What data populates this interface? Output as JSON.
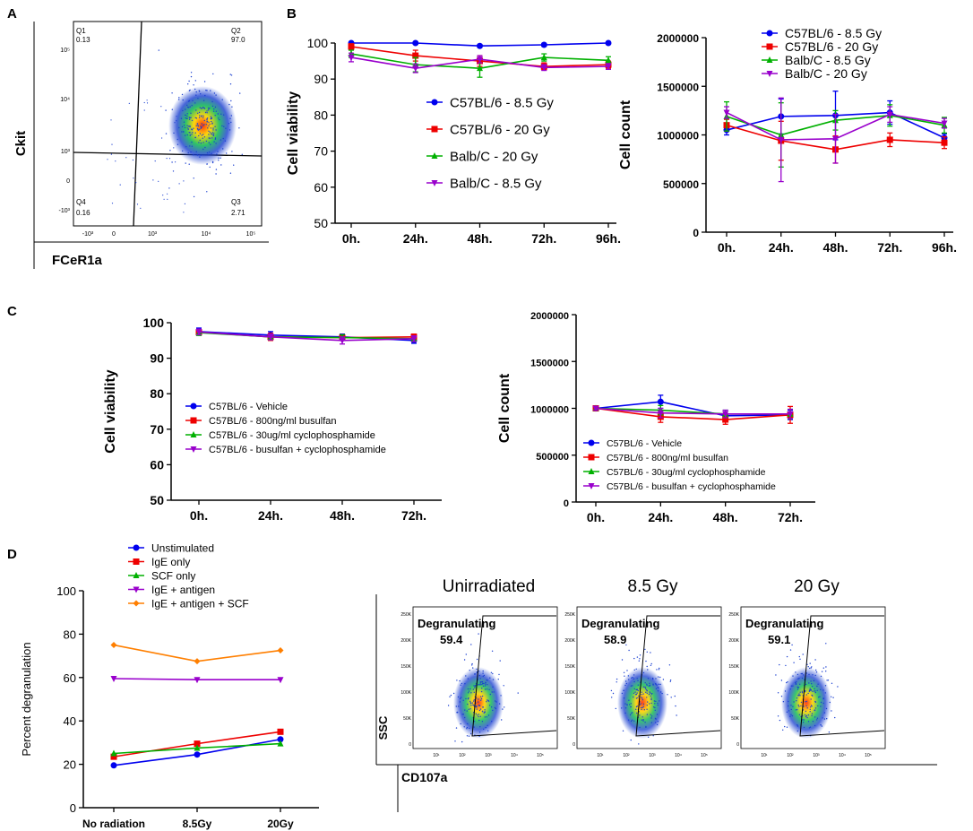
{
  "panels": {
    "A": "A",
    "B": "B",
    "C": "C",
    "D": "D"
  },
  "colors": {
    "blue": "#0000ee",
    "red": "#ee0000",
    "green": "#00b000",
    "purple": "#9900cc",
    "orange": "#ff7f00"
  },
  "chart_data": [
    {
      "id": "A-flow",
      "type": "scatter",
      "title": "",
      "xlabel": "FCeR1a",
      "ylabel": "Ckit",
      "quadrants": [
        {
          "name": "Q1",
          "value": "0.13"
        },
        {
          "name": "Q2",
          "value": "97.0"
        },
        {
          "name": "Q3",
          "value": "2.71"
        },
        {
          "name": "Q4",
          "value": "0.16"
        }
      ],
      "xticks": [
        "-10³",
        "0",
        "10³",
        "10⁴",
        "10⁵"
      ],
      "yticks": [
        "10⁵",
        "10⁴",
        "10³",
        "0",
        "-10³"
      ]
    },
    {
      "id": "B-viability",
      "type": "line",
      "xlabel": "",
      "ylabel": "Cell viability",
      "ylim": [
        50,
        100
      ],
      "yticks": [
        "50",
        "60",
        "70",
        "80",
        "90",
        "100"
      ],
      "categories": [
        "0h.",
        "24h.",
        "48h.",
        "72h.",
        "96h."
      ],
      "series": [
        {
          "name": "C57BL/6 - 8.5 Gy",
          "color": "blue",
          "marker": "circle",
          "values": [
            100,
            100,
            99.2,
            99.5,
            100
          ],
          "errors": [
            0.3,
            0.3,
            0.4,
            0.4,
            0.3
          ]
        },
        {
          "name": "C57BL/6 - 20 Gy",
          "color": "red",
          "marker": "square",
          "values": [
            99,
            96.5,
            95,
            93.5,
            94
          ],
          "errors": [
            0.8,
            1.5,
            1.5,
            1,
            1
          ]
        },
        {
          "name": "Balb/C - 20 Gy",
          "color": "green",
          "marker": "triangle",
          "values": [
            97,
            94,
            93,
            96,
            95.2
          ],
          "errors": [
            1,
            2,
            2.5,
            1,
            1
          ]
        },
        {
          "name": "Balb/C - 8.5 Gy",
          "color": "purple",
          "marker": "tridown",
          "values": [
            96,
            93,
            95.5,
            93.2,
            93.5
          ],
          "errors": [
            1.2,
            1.2,
            1,
            0.8,
            0.8
          ]
        }
      ]
    },
    {
      "id": "B-count",
      "type": "line",
      "xlabel": "",
      "ylabel": "Cell count",
      "ylim": [
        0,
        2000000
      ],
      "yticks": [
        "0",
        "500000",
        "1000000",
        "1500000",
        "2000000"
      ],
      "categories": [
        "0h.",
        "24h.",
        "48h.",
        "72h.",
        "96h."
      ],
      "series": [
        {
          "name": "C57BL/6 - 8.5 Gy",
          "color": "blue",
          "marker": "circle",
          "values": [
            1050000,
            1190000,
            1200000,
            1230000,
            970000
          ],
          "errors": [
            50000,
            180000,
            250000,
            120000,
            40000
          ]
        },
        {
          "name": "C57BL/6 - 20 Gy",
          "color": "red",
          "marker": "square",
          "values": [
            1100000,
            940000,
            850000,
            950000,
            920000
          ],
          "errors": [
            60000,
            200000,
            140000,
            70000,
            60000
          ]
        },
        {
          "name": "Balb/C - 8.5 Gy",
          "color": "green",
          "marker": "triangle",
          "values": [
            1190000,
            1000000,
            1150000,
            1200000,
            1100000
          ],
          "errors": [
            150000,
            330000,
            100000,
            110000,
            80000
          ]
        },
        {
          "name": "Balb/C - 20 Gy",
          "color": "purple",
          "marker": "tridown",
          "values": [
            1230000,
            950000,
            960000,
            1210000,
            1120000
          ],
          "errors": [
            60000,
            430000,
            250000,
            80000,
            50000
          ]
        }
      ]
    },
    {
      "id": "C-viability",
      "type": "line",
      "xlabel": "",
      "ylabel": "Cell viability",
      "ylim": [
        50,
        100
      ],
      "yticks": [
        "50",
        "60",
        "70",
        "80",
        "90",
        "100"
      ],
      "categories": [
        "0h.",
        "24h.",
        "48h.",
        "72h."
      ],
      "series": [
        {
          "name": "C57BL/6 - Vehicle",
          "color": "blue",
          "marker": "circle",
          "values": [
            97.5,
            96.5,
            96,
            95
          ],
          "errors": [
            1,
            1,
            0.8,
            0.8
          ]
        },
        {
          "name": "C57BL/6 - 800ng/ml busulfan",
          "color": "red",
          "marker": "square",
          "values": [
            97.3,
            96,
            95.8,
            96
          ],
          "errors": [
            0.8,
            1,
            0.8,
            0.8
          ]
        },
        {
          "name": "C57BL/6 - 30ug/ml cyclophosphamide",
          "color": "green",
          "marker": "triangle",
          "values": [
            97.2,
            96,
            95.8,
            95.5
          ],
          "errors": [
            0.8,
            0.8,
            0.8,
            0.8
          ]
        },
        {
          "name": "C57BL/6 - busulfan + cyclophosphamide",
          "color": "purple",
          "marker": "tridown",
          "values": [
            97.4,
            96,
            95,
            95.5
          ],
          "errors": [
            0.8,
            0.8,
            1,
            0.8
          ]
        }
      ]
    },
    {
      "id": "C-count",
      "type": "line",
      "xlabel": "",
      "ylabel": "Cell count",
      "ylim": [
        0,
        2000000
      ],
      "yticks": [
        "0",
        "500000",
        "1000000",
        "1500000",
        "2000000"
      ],
      "categories": [
        "0h.",
        "24h.",
        "48h.",
        "72h."
      ],
      "series": [
        {
          "name": "C57BL/6 - Vehicle",
          "color": "blue",
          "marker": "circle",
          "values": [
            1000000,
            1070000,
            920000,
            930000
          ],
          "errors": [
            20000,
            70000,
            60000,
            50000
          ]
        },
        {
          "name": "C57BL/6 - 800ng/ml busulfan",
          "color": "red",
          "marker": "square",
          "values": [
            1000000,
            910000,
            880000,
            930000
          ],
          "errors": [
            20000,
            60000,
            50000,
            90000
          ]
        },
        {
          "name": "C57BL/6 - 30ug/ml cyclophosphamide",
          "color": "green",
          "marker": "triangle",
          "values": [
            1000000,
            980000,
            940000,
            940000
          ],
          "errors": [
            20000,
            50000,
            40000,
            50000
          ]
        },
        {
          "name": "C57BL/6 - busulfan + cyclophosphamide",
          "color": "purple",
          "marker": "tridown",
          "values": [
            1000000,
            950000,
            940000,
            940000
          ],
          "errors": [
            20000,
            50000,
            40000,
            50000
          ]
        }
      ]
    },
    {
      "id": "D-degranulation",
      "type": "line",
      "xlabel": "",
      "ylabel": "Percent degranulation",
      "ylim": [
        0,
        100
      ],
      "yticks": [
        "0",
        "20",
        "40",
        "60",
        "80",
        "100"
      ],
      "categories": [
        "No radiation",
        "8.5Gy",
        "20Gy"
      ],
      "series": [
        {
          "name": "Unstimulated",
          "color": "blue",
          "marker": "circle",
          "values": [
            19.5,
            24.5,
            31.5
          ]
        },
        {
          "name": "IgE only",
          "color": "red",
          "marker": "square",
          "values": [
            23.5,
            29.5,
            35
          ]
        },
        {
          "name": "SCF only",
          "color": "green",
          "marker": "triangle",
          "values": [
            25,
            27.5,
            29.5
          ]
        },
        {
          "name": "IgE + antigen",
          "color": "purple",
          "marker": "tridown",
          "values": [
            59.5,
            59,
            59
          ]
        },
        {
          "name": "IgE + antigen + SCF",
          "color": "orange",
          "marker": "diamond",
          "values": [
            75,
            67.5,
            72.5
          ]
        }
      ]
    },
    {
      "id": "D-flow",
      "type": "scatter",
      "xlabel": "CD107a",
      "ylabel": "SSC",
      "plots": [
        {
          "title": "Unirradiated",
          "gate": "Degranulating",
          "value": "59.4"
        },
        {
          "title": "8.5 Gy",
          "gate": "Degranulating",
          "value": "58.9"
        },
        {
          "title": "20 Gy",
          "gate": "Degranulating",
          "value": "59.1"
        }
      ],
      "yticks": [
        "250K",
        "200K",
        "150K",
        "100K",
        "50K",
        "0"
      ],
      "xticks": [
        "10¹",
        "10²",
        "10³",
        "10⁴",
        "10⁵"
      ]
    }
  ]
}
